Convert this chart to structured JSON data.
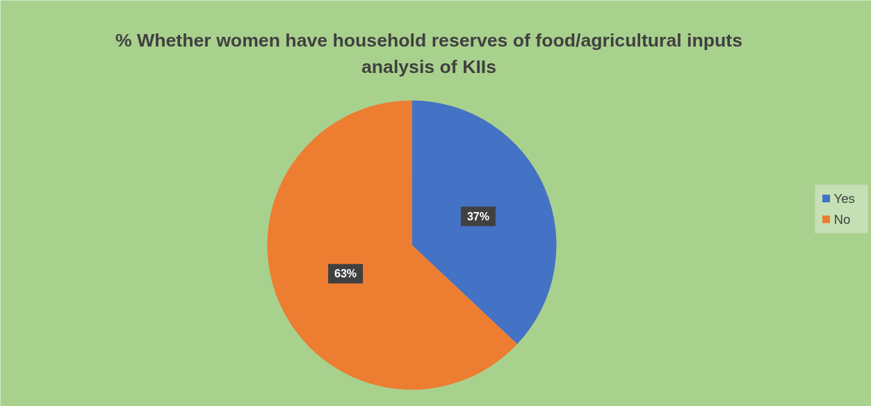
{
  "chart_data": {
    "type": "pie",
    "title": "% Whether women have household reserves of food/agricultural inputs analysis of KIIs",
    "categories": [
      "Yes",
      "No"
    ],
    "values": [
      37,
      63
    ],
    "colors": [
      "#4472c4",
      "#ed7d31"
    ],
    "value_labels": [
      "37%",
      "63%"
    ],
    "legend": "right"
  }
}
